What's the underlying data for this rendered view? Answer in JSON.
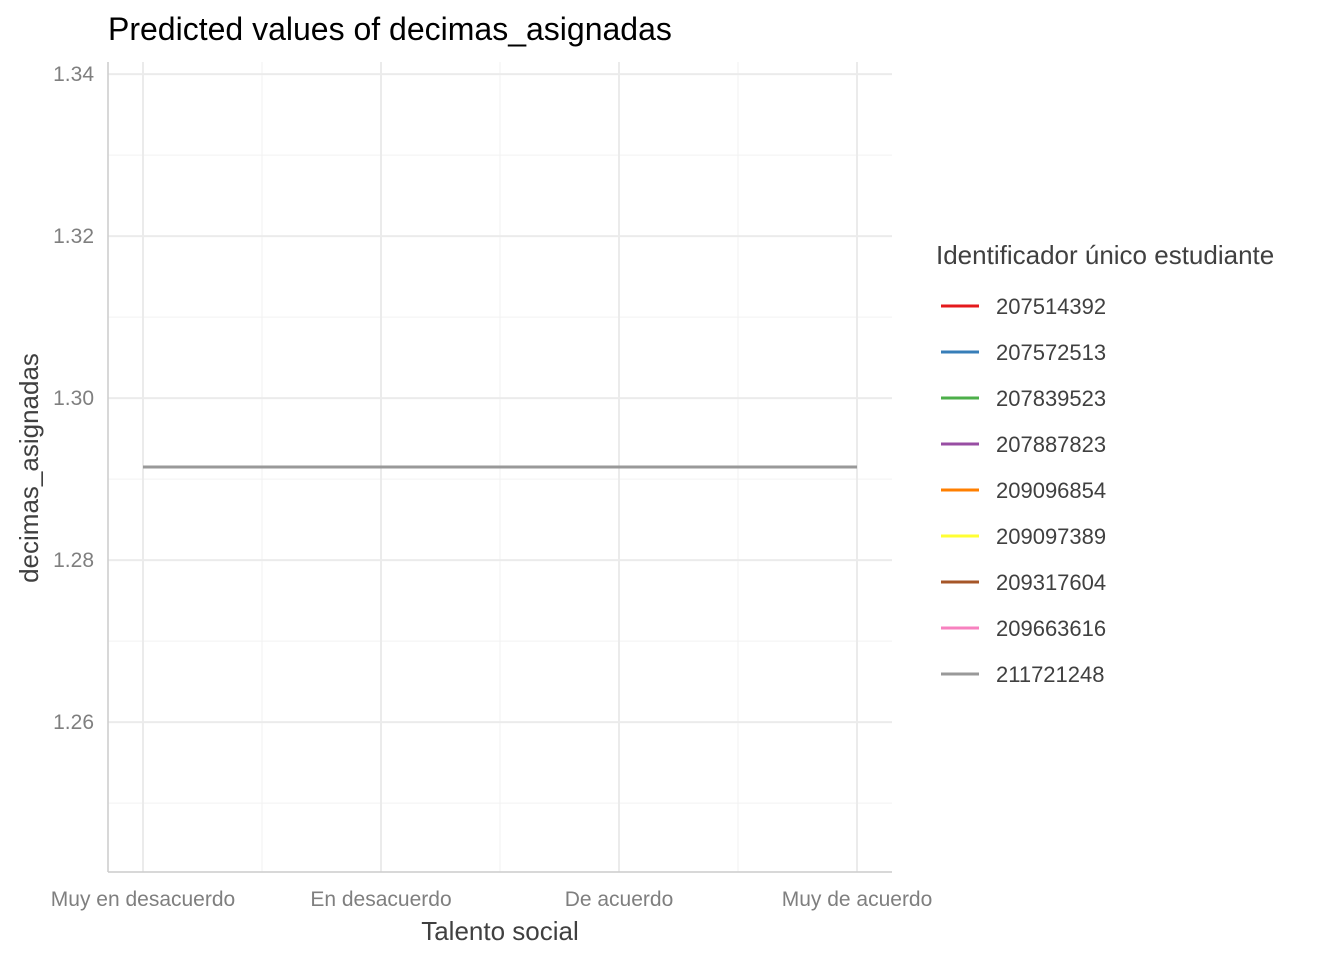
{
  "chart_data": {
    "type": "line",
    "title": "Predicted values of decimas_asignadas",
    "xlabel": "Talento social",
    "ylabel": "decimas_asignadas",
    "categories": [
      "Muy en desacuerdo",
      "En desacuerdo",
      "De acuerdo",
      "Muy de acuerdo"
    ],
    "ylim": [
      1.2415,
      1.3415
    ],
    "yticks": [
      1.26,
      1.28,
      1.3,
      1.32,
      1.34
    ],
    "yticks_labels": [
      "1.26",
      "1.28",
      "1.30",
      "1.32",
      "1.34"
    ],
    "grid": true,
    "legend_title": "Identificador único estudiante",
    "legend_position": "right",
    "series": [
      {
        "name": "207514392",
        "color": "#E41A1C",
        "values": [
          1.2915,
          1.2915,
          1.2915,
          1.2915
        ]
      },
      {
        "name": "207572513",
        "color": "#377EB8",
        "values": [
          1.2915,
          1.2915,
          1.2915,
          1.2915
        ]
      },
      {
        "name": "207839523",
        "color": "#4DAF4A",
        "values": [
          1.2915,
          1.2915,
          1.2915,
          1.2915
        ]
      },
      {
        "name": "207887823",
        "color": "#984EA3",
        "values": [
          1.2915,
          1.2915,
          1.2915,
          1.2915
        ]
      },
      {
        "name": "209096854",
        "color": "#FF7F00",
        "values": [
          1.2915,
          1.2915,
          1.2915,
          1.2915
        ]
      },
      {
        "name": "209097389",
        "color": "#FFFF33",
        "values": [
          1.2915,
          1.2915,
          1.2915,
          1.2915
        ]
      },
      {
        "name": "209317604",
        "color": "#A65628",
        "values": [
          1.2915,
          1.2915,
          1.2915,
          1.2915
        ]
      },
      {
        "name": "209663616",
        "color": "#F781BF",
        "values": [
          1.2915,
          1.2915,
          1.2915,
          1.2915
        ]
      },
      {
        "name": "211721248",
        "color": "#999999",
        "values": [
          1.2915,
          1.2915,
          1.2915,
          1.2915
        ]
      }
    ]
  }
}
